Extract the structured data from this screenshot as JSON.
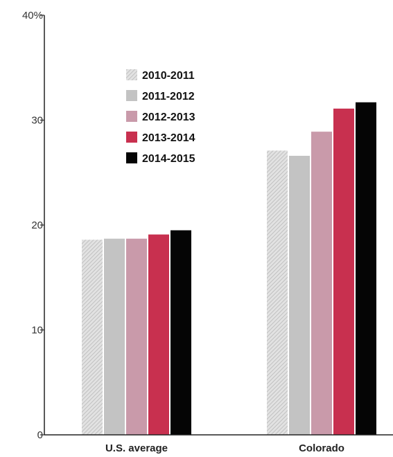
{
  "chart_data": {
    "type": "bar",
    "categories": [
      "U.S. average",
      "Colorado"
    ],
    "series": [
      {
        "name": "2010-2011",
        "values": [
          18.6,
          27.1
        ],
        "color": "#d9d9d9",
        "pattern": "hatched"
      },
      {
        "name": "2011-2012",
        "values": [
          18.7,
          26.6
        ],
        "color": "#c3c3c3"
      },
      {
        "name": "2012-2013",
        "values": [
          18.7,
          28.9
        ],
        "color": "#c99aaa"
      },
      {
        "name": "2013-2014",
        "values": [
          19.1,
          31.1
        ],
        "color": "#c8304f"
      },
      {
        "name": "2014-2015",
        "values": [
          19.5,
          31.7
        ],
        "color": "#050505"
      }
    ],
    "yticks": [
      {
        "value": 0,
        "label": "0"
      },
      {
        "value": 10,
        "label": "10"
      },
      {
        "value": 20,
        "label": "20"
      },
      {
        "value": 30,
        "label": "30"
      },
      {
        "value": 40,
        "label": "40%"
      }
    ],
    "ylim": [
      0,
      40
    ],
    "title": "",
    "xlabel": "",
    "ylabel": "",
    "grid": false,
    "legend_position": "top-left"
  }
}
